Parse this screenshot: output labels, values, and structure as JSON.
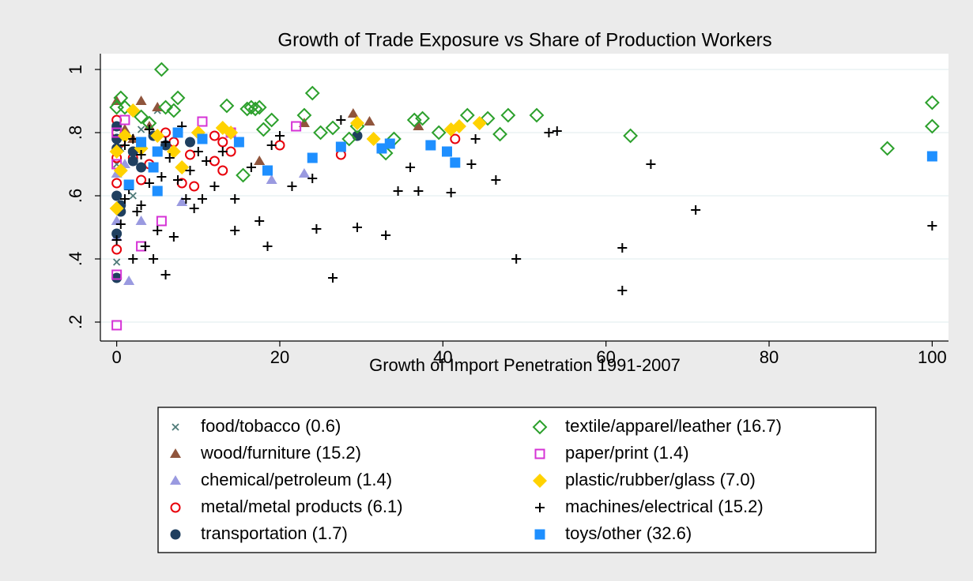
{
  "chart_data": {
    "type": "scatter",
    "title": "Growth of Trade Exposure vs Share of Production Workers",
    "x_label": "Growth of Import Penetration 1991-2007",
    "xlim": [
      -2,
      102
    ],
    "xticks": [
      0,
      20,
      40,
      60,
      80,
      100
    ],
    "ylim": [
      0.14,
      1.05
    ],
    "yticks": [
      {
        "value": 0.2,
        "label": ".2"
      },
      {
        "value": 0.4,
        "label": ".4"
      },
      {
        "value": 0.6,
        "label": ".6"
      },
      {
        "value": 0.8,
        "label": ".8"
      },
      1
    ],
    "grid": true,
    "legend_position": "bottom",
    "series": [
      {
        "name": "food/tobacco (0.6)",
        "color": "#4e7a78",
        "marker": "x",
        "x": [
          0,
          0.5,
          1,
          3,
          5,
          0,
          2
        ],
        "y": [
          0.39,
          0.75,
          0.8,
          0.81,
          0.87,
          0.7,
          0.6
        ]
      },
      {
        "name": "wood/furniture (15.2)",
        "color": "#90553c",
        "marker": "triangle",
        "x": [
          0,
          3,
          5,
          1,
          4,
          17.5,
          23,
          29,
          31,
          37,
          2
        ],
        "y": [
          0.9,
          0.9,
          0.88,
          0.81,
          0.82,
          0.71,
          0.83,
          0.86,
          0.835,
          0.82,
          0.78
        ]
      },
      {
        "name": "chemical/petroleum (1.4)",
        "color": "#9a9ae0",
        "marker": "triangle",
        "x": [
          0,
          0,
          1.5,
          3,
          8,
          19,
          23,
          0,
          1
        ],
        "y": [
          0.67,
          0.52,
          0.33,
          0.52,
          0.58,
          0.65,
          0.67,
          0.47,
          0.7
        ]
      },
      {
        "name": "metal/metal products (6.1)",
        "color": "#e8000b",
        "marker": "circle-hollow",
        "x": [
          0,
          0,
          0,
          0,
          0,
          2,
          3,
          4,
          6,
          7,
          8,
          9,
          9.5,
          12,
          12,
          13,
          13,
          14,
          20,
          27.5,
          41.5,
          0.5
        ],
        "y": [
          0.43,
          0.64,
          0.72,
          0.8,
          0.84,
          0.72,
          0.65,
          0.7,
          0.8,
          0.77,
          0.64,
          0.73,
          0.63,
          0.79,
          0.71,
          0.77,
          0.68,
          0.74,
          0.76,
          0.73,
          0.78,
          0.77
        ]
      },
      {
        "name": "transportation (1.7)",
        "color": "#1f3f5f",
        "marker": "circle",
        "x": [
          0,
          0,
          0,
          0,
          0,
          0.5,
          0.5,
          2,
          2,
          3,
          4.5,
          6,
          9,
          29.5,
          0
        ],
        "y": [
          0.34,
          0.48,
          0.6,
          0.75,
          0.82,
          0.55,
          0.57,
          0.71,
          0.74,
          0.69,
          0.79,
          0.76,
          0.77,
          0.79,
          0.78
        ]
      },
      {
        "name": "textile/apparel/leather (16.7)",
        "color": "#2ca02c",
        "marker": "diamond-hollow",
        "x": [
          0,
          0.5,
          1,
          3,
          4,
          5.5,
          6,
          7,
          7.5,
          13.5,
          15.5,
          16,
          16.5,
          17,
          17.5,
          18,
          19,
          23,
          24,
          25,
          26.5,
          28.5,
          29.5,
          33,
          34,
          36.5,
          37.5,
          39.5,
          43,
          45.5,
          47,
          48,
          51.5,
          63,
          94.5,
          100,
          100
        ],
        "y": [
          0.88,
          0.91,
          0.88,
          0.85,
          0.83,
          1.0,
          0.88,
          0.87,
          0.91,
          0.885,
          0.665,
          0.875,
          0.88,
          0.875,
          0.88,
          0.81,
          0.84,
          0.855,
          0.925,
          0.8,
          0.815,
          0.78,
          0.82,
          0.735,
          0.78,
          0.84,
          0.845,
          0.8,
          0.855,
          0.845,
          0.795,
          0.855,
          0.855,
          0.79,
          0.75,
          0.895,
          0.82
        ]
      },
      {
        "name": "paper/print (1.4)",
        "color": "#d633d6",
        "marker": "square-hollow",
        "x": [
          0,
          0,
          0,
          0,
          3,
          5.5,
          10.5,
          22,
          1,
          14
        ],
        "y": [
          0.19,
          0.35,
          0.7,
          0.8,
          0.44,
          0.52,
          0.835,
          0.82,
          0.84,
          0.8
        ]
      },
      {
        "name": "plastic/rubber/glass (7.0)",
        "color": "#ffd200",
        "marker": "diamond",
        "x": [
          0,
          0,
          1,
          2,
          3,
          5,
          7,
          8,
          10,
          13,
          14,
          29.5,
          31.5,
          41,
          42,
          44.5,
          0.5
        ],
        "y": [
          0.56,
          0.74,
          0.79,
          0.87,
          0.75,
          0.79,
          0.74,
          0.69,
          0.8,
          0.815,
          0.8,
          0.83,
          0.78,
          0.81,
          0.82,
          0.83,
          0.68
        ]
      },
      {
        "name": "machines/electrical (15.2)",
        "color": "#000000",
        "marker": "plus",
        "x": [
          0,
          0.5,
          1,
          1.5,
          2,
          2.5,
          3,
          3.5,
          4,
          4.5,
          5,
          5.5,
          6,
          6.5,
          7,
          7.5,
          8,
          8.5,
          9,
          9.5,
          10,
          10.5,
          11,
          12,
          13,
          14.5,
          14.5,
          16.5,
          17.5,
          18.5,
          19,
          20,
          21.5,
          24,
          24.5,
          26.5,
          27.5,
          29.5,
          33,
          34.5,
          36,
          37,
          41,
          43.5,
          44,
          46.5,
          49,
          53,
          54,
          62,
          62,
          65.5,
          71,
          100,
          2,
          4,
          3,
          1,
          6
        ],
        "y": [
          0.46,
          0.51,
          0.59,
          0.62,
          0.4,
          0.55,
          0.57,
          0.44,
          0.64,
          0.4,
          0.49,
          0.66,
          0.35,
          0.72,
          0.47,
          0.65,
          0.82,
          0.59,
          0.68,
          0.56,
          0.74,
          0.59,
          0.71,
          0.63,
          0.74,
          0.59,
          0.49,
          0.69,
          0.52,
          0.44,
          0.76,
          0.79,
          0.63,
          0.655,
          0.495,
          0.34,
          0.84,
          0.5,
          0.475,
          0.615,
          0.69,
          0.615,
          0.61,
          0.7,
          0.78,
          0.65,
          0.4,
          0.8,
          0.805,
          0.435,
          0.3,
          0.7,
          0.555,
          0.505,
          0.78,
          0.81,
          0.73,
          0.76,
          0.77
        ]
      },
      {
        "name": "toys/other (32.6)",
        "color": "#1e8fff",
        "marker": "square",
        "x": [
          1.5,
          3,
          4.5,
          5,
          7.5,
          10.5,
          15,
          18.5,
          24,
          27.5,
          32.5,
          33.5,
          38.5,
          40.5,
          41.5,
          100,
          5
        ],
        "y": [
          0.635,
          0.77,
          0.69,
          0.615,
          0.8,
          0.78,
          0.77,
          0.68,
          0.72,
          0.755,
          0.75,
          0.765,
          0.76,
          0.74,
          0.705,
          0.725,
          0.74
        ]
      }
    ]
  }
}
